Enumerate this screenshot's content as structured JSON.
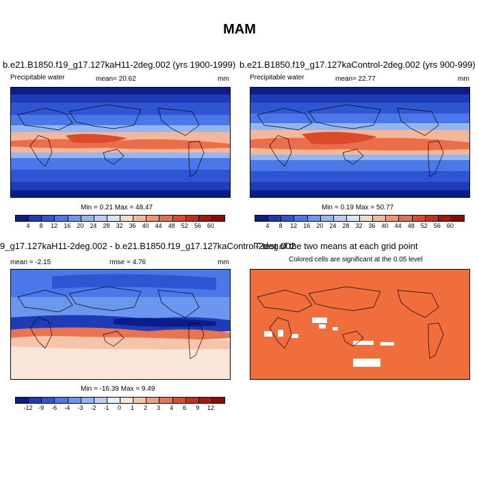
{
  "page": {
    "title": "MAM"
  },
  "panels": [
    {
      "title": "b.e21.B1850.f19_g17.127kaH11-2deg.002 (yrs 1900-1999)",
      "left_label": "Precipitable water",
      "center_label": "mean=  20.62",
      "right_label": "mm",
      "stats": "Min =   0.21 Max =  48.47"
    },
    {
      "title": "b.e21.B1850.f19_g17.127kaControl-2deg.002 (yrs 900-999)",
      "left_label": "Precipitable water",
      "center_label": "mean=  22.77",
      "right_label": "mm",
      "stats": "Min =   0.19 Max =  50.77"
    },
    {
      "title": "9_g17.127kaH11-2deg.002 - b.e21.B1850.f19_g17.127kaControl-2deg.002",
      "left_label": "mean =  -2.15",
      "center_label": "rmse =   4.76",
      "right_label": "mm",
      "stats": "Min = -16.39 Max =   9.49"
    },
    {
      "title": "T-test of the two means at each grid point",
      "subtitle": "Colored cells are significant at the 0.05 level"
    }
  ],
  "colorbars": {
    "absolute": {
      "labels": [
        "4",
        "8",
        "12",
        "16",
        "20",
        "24",
        "28",
        "32",
        "36",
        "40",
        "44",
        "48",
        "52",
        "56",
        "60"
      ],
      "colors": [
        "#0a1d8a",
        "#1f3bb8",
        "#2f56d2",
        "#4a78e8",
        "#6b97ef",
        "#93b6f2",
        "#b7cff4",
        "#d7e3f6",
        "#f6d8c8",
        "#f5b79a",
        "#f19470",
        "#ea6e4a",
        "#dc4a2c",
        "#c52f1c",
        "#a8170f",
        "#8a0b08"
      ]
    },
    "difference": {
      "labels": [
        "-12",
        "-9",
        "-6",
        "-4",
        "-3",
        "-2",
        "-1",
        "0",
        "1",
        "2",
        "3",
        "4",
        "6",
        "9",
        "12"
      ],
      "colors": [
        "#0a1d8a",
        "#1f3bb8",
        "#2f56d2",
        "#4a78e8",
        "#6b97ef",
        "#93b6f2",
        "#b7cff4",
        "#e6eefa",
        "#fae6d8",
        "#f6c4a8",
        "#f19f7c",
        "#ea7450",
        "#dc4a2c",
        "#c52f1c",
        "#a8170f",
        "#8a0b08"
      ]
    }
  },
  "ttest_color": "#f06e3c"
}
